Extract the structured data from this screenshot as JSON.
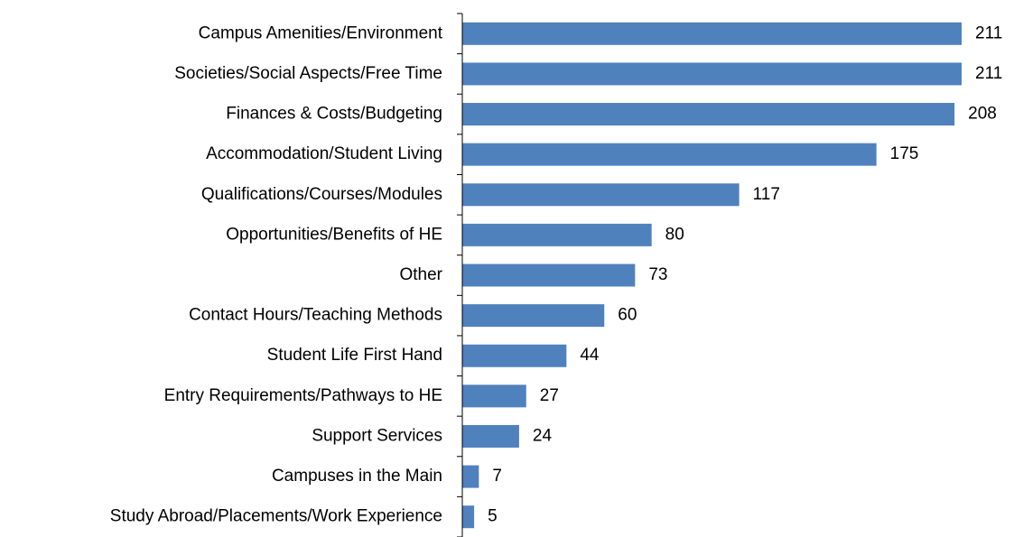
{
  "chart_data": {
    "type": "bar",
    "orientation": "horizontal",
    "categories": [
      "Campus Amenities/Environment",
      "Societies/Social Aspects/Free Time",
      "Finances & Costs/Budgeting",
      "Accommodation/Student Living",
      "Qualifications/Courses/Modules",
      "Opportunities/Benefits of HE",
      "Other",
      "Contact Hours/Teaching Methods",
      "Student Life First Hand",
      "Entry Requirements/Pathways to HE",
      "Support Services",
      "Campuses in the Main",
      "Study Abroad/Placements/Work Experience"
    ],
    "values": [
      211,
      211,
      208,
      175,
      117,
      80,
      73,
      60,
      44,
      27,
      24,
      7,
      5
    ],
    "color": "#4f81bd"
  }
}
